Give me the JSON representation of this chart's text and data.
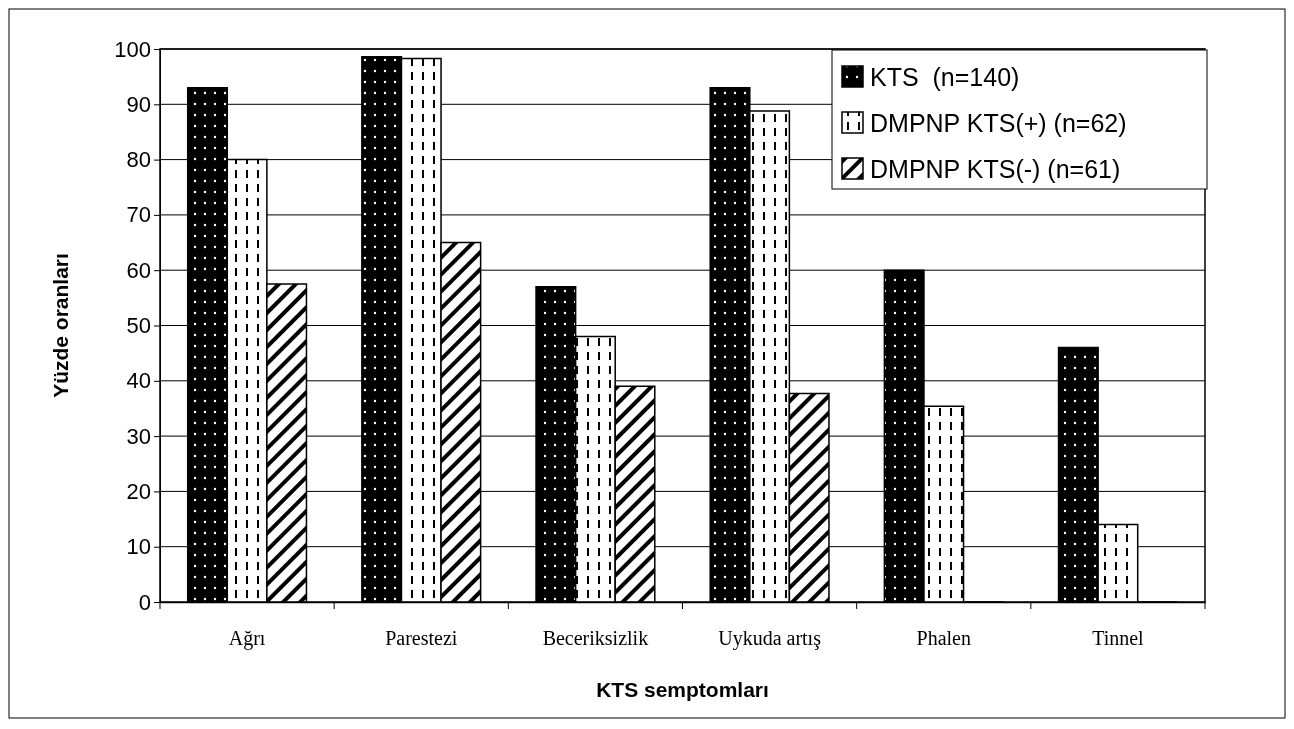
{
  "chart_data": {
    "type": "bar",
    "xlabel": "KTS semptomları",
    "ylabel": "Yüzde oranları",
    "categories": [
      "Ağrı",
      "Parestezi",
      "Beceriksizlik",
      "Uykuda artış",
      "Phalen",
      "Tinnel"
    ],
    "series": [
      {
        "name": "KTS  (n=140)",
        "color": "#000000",
        "values": [
          93,
          98.6,
          57,
          93,
          60,
          46
        ]
      },
      {
        "name": "DMPNP KTS(+) (n=62)",
        "color": "#ffffff",
        "values": [
          80,
          98.3,
          48,
          88.8,
          35.4,
          14
        ]
      },
      {
        "name": "DMPNP KTS(-) (n=61)",
        "color": "#ffffff",
        "values": [
          57.5,
          65,
          39,
          37.7,
          0,
          0
        ]
      }
    ],
    "ylim": [
      0,
      100
    ],
    "yticks": [
      0,
      10,
      20,
      30,
      40,
      50,
      60,
      70,
      80,
      90,
      100
    ],
    "grid": "y",
    "legend": "top right"
  }
}
